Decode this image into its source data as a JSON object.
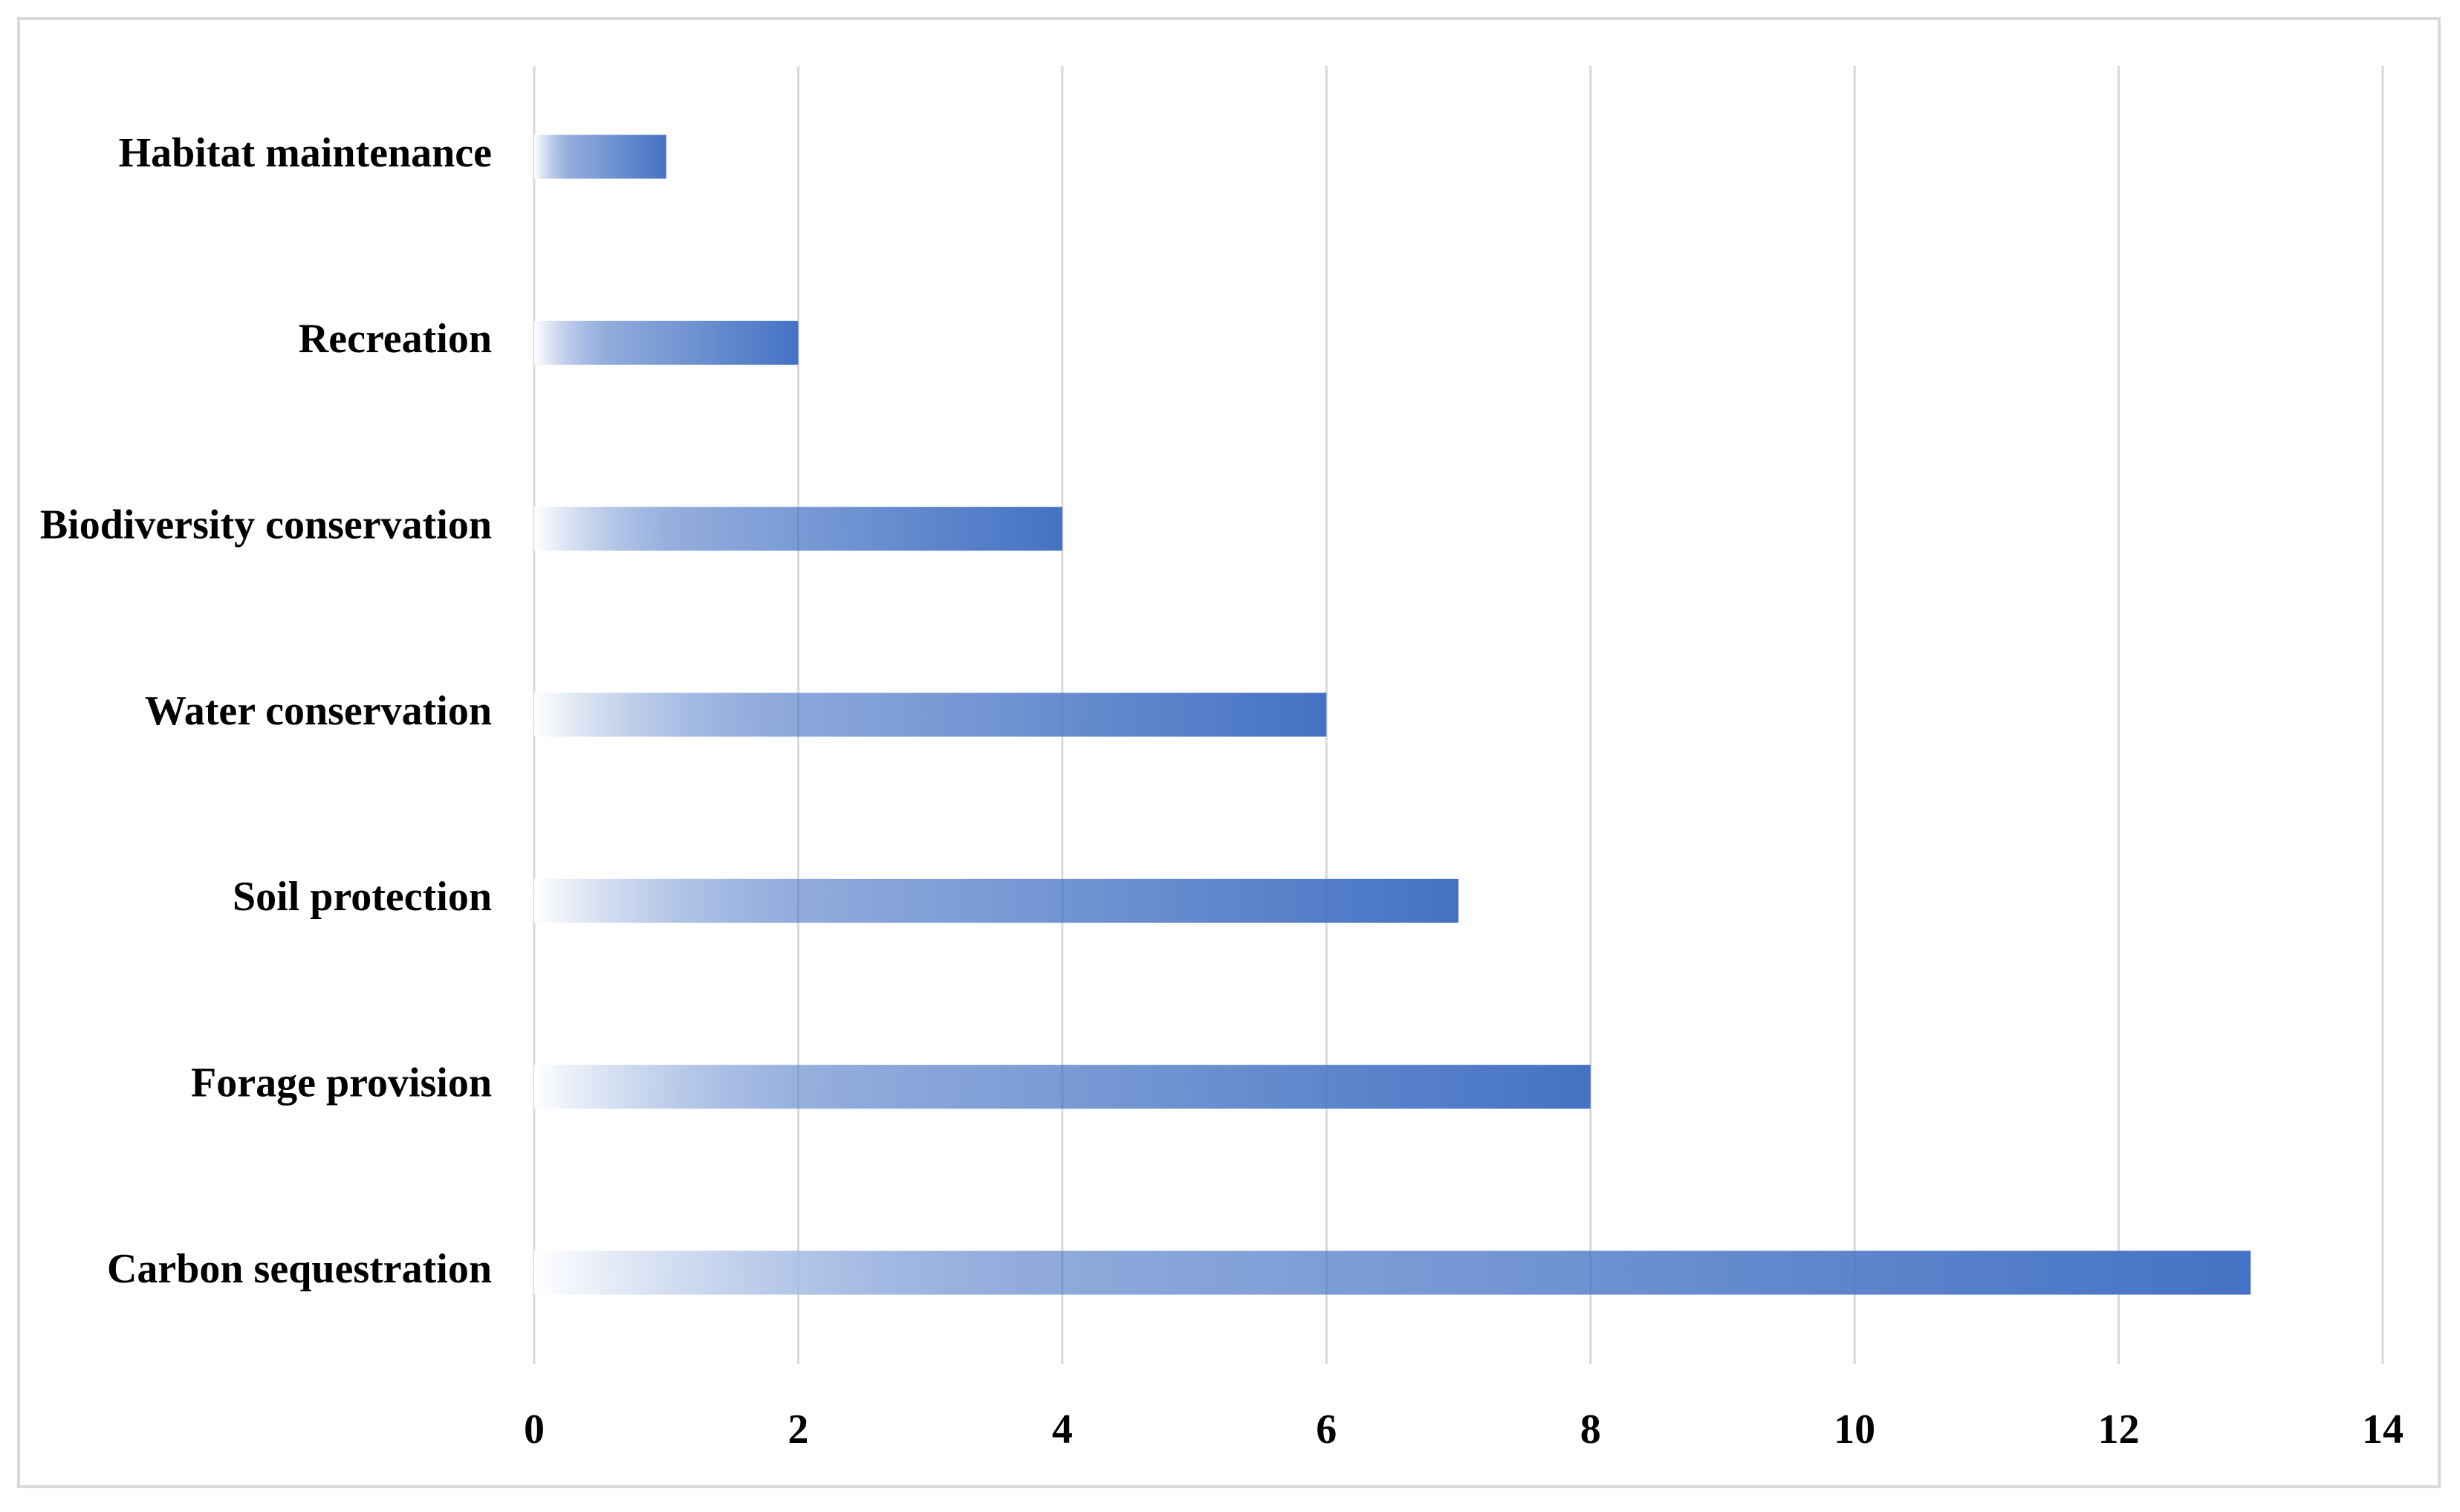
{
  "chart_data": {
    "type": "bar",
    "orientation": "horizontal",
    "categories": [
      "Habitat maintenance",
      "Recreation",
      "Biodiversity conservation",
      "Water conservation",
      "Soil protection",
      "Forage provision",
      "Carbon sequestration"
    ],
    "values": [
      1,
      2,
      4,
      6,
      7,
      8,
      13
    ],
    "color": "#4472c4",
    "xlim": [
      0,
      14
    ],
    "xticks": [
      0,
      2,
      4,
      6,
      8,
      10,
      12,
      14
    ],
    "grid": true
  }
}
